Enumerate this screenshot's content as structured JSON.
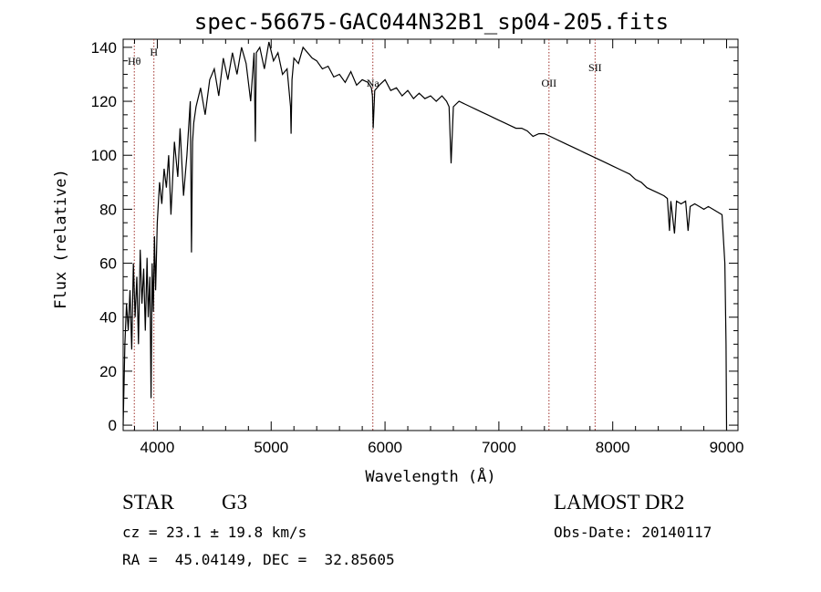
{
  "chart_data": {
    "type": "line",
    "title": "spec-56675-GAC044N32B1_sp04-205.fits",
    "xlabel": "Wavelength (Å)",
    "ylabel": "Flux (relative)",
    "xlim": [
      3700,
      9100
    ],
    "ylim": [
      -2,
      143
    ],
    "xticks": [
      4000,
      5000,
      6000,
      7000,
      8000,
      9000
    ],
    "yticks": [
      0,
      20,
      40,
      60,
      80,
      100,
      120,
      140
    ],
    "grid": false,
    "series": [
      {
        "x": [
          3700,
          3715,
          3730,
          3745,
          3760,
          3775,
          3790,
          3805,
          3820,
          3835,
          3850,
          3865,
          3880,
          3895,
          3910,
          3920,
          3935,
          3945,
          3955,
          3965,
          3975,
          3985,
          4000,
          4020,
          4040,
          4060,
          4080,
          4100,
          4120,
          4150,
          4180,
          4200,
          4230,
          4260,
          4290,
          4300,
          4310,
          4320,
          4340,
          4380,
          4420,
          4460,
          4500,
          4540,
          4580,
          4620,
          4660,
          4700,
          4740,
          4780,
          4820,
          4850,
          4861,
          4870,
          4900,
          4940,
          4980,
          5020,
          5060,
          5100,
          5140,
          5170,
          5175,
          5183,
          5200,
          5240,
          5280,
          5320,
          5360,
          5400,
          5450,
          5500,
          5550,
          5600,
          5650,
          5700,
          5750,
          5800,
          5850,
          5880,
          5890,
          5896,
          5910,
          5950,
          6000,
          6050,
          6100,
          6150,
          6200,
          6250,
          6300,
          6350,
          6400,
          6450,
          6500,
          6540,
          6563,
          6580,
          6600,
          6650,
          6700,
          6750,
          6800,
          6850,
          6900,
          6950,
          7000,
          7050,
          7100,
          7150,
          7200,
          7250,
          7300,
          7350,
          7400,
          7450,
          7500,
          7550,
          7600,
          7650,
          7700,
          7750,
          7800,
          7850,
          7900,
          7950,
          8000,
          8050,
          8100,
          8150,
          8200,
          8250,
          8300,
          8350,
          8400,
          8450,
          8480,
          8498,
          8510,
          8542,
          8560,
          8600,
          8640,
          8662,
          8680,
          8720,
          8760,
          8800,
          8840,
          8880,
          8920,
          8960,
          8985,
          8995,
          9000
        ],
        "y": [
          0,
          30,
          45,
          35,
          50,
          28,
          60,
          40,
          55,
          30,
          65,
          45,
          58,
          35,
          62,
          40,
          55,
          10,
          60,
          42,
          70,
          50,
          75,
          90,
          82,
          95,
          88,
          100,
          78,
          105,
          92,
          110,
          85,
          100,
          120,
          64,
          105,
          112,
          118,
          125,
          115,
          128,
          132,
          122,
          136,
          128,
          138,
          130,
          140,
          134,
          120,
          138,
          105,
          138,
          140,
          132,
          142,
          135,
          138,
          130,
          132,
          118,
          108,
          128,
          136,
          134,
          140,
          138,
          136,
          135,
          132,
          133,
          129,
          130,
          127,
          131,
          126,
          128,
          127,
          125,
          122,
          110,
          124,
          126,
          128,
          124,
          125,
          122,
          124,
          121,
          123,
          121,
          122,
          120,
          122,
          120,
          118,
          97,
          118,
          120,
          119,
          118,
          117,
          116,
          115,
          114,
          113,
          112,
          111,
          110,
          110,
          109,
          107,
          108,
          108,
          107,
          106,
          105,
          104,
          103,
          102,
          101,
          100,
          99,
          98,
          97,
          96,
          95,
          94,
          93,
          91,
          90,
          88,
          87,
          86,
          85,
          84,
          72,
          83,
          71,
          83,
          82,
          83,
          72,
          81,
          82,
          81,
          80,
          81,
          80,
          79,
          78,
          60,
          30,
          -3
        ]
      }
    ],
    "annotations": [
      {
        "label": "Hθ",
        "x": 3798
      },
      {
        "label": "H",
        "x": 3970
      },
      {
        "label": "Na",
        "x": 5893
      },
      {
        "label": "OII",
        "x": 7440
      },
      {
        "label": "SII",
        "x": 7845
      }
    ]
  },
  "info": {
    "object_class": "STAR",
    "subclass": "G3",
    "survey": "LAMOST DR2",
    "cz": "cz = 23.1 ± 19.8 km/s",
    "obs_date": "Obs-Date: 20140117",
    "coords": "RA =  45.04149, DEC =  32.85605"
  }
}
